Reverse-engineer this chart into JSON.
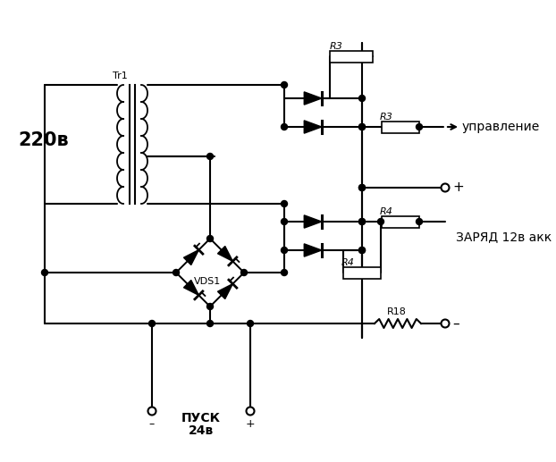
{
  "bg_color": "#ffffff",
  "line_color": "#000000",
  "figsize": [
    6.22,
    5.17
  ],
  "dpi": 100,
  "label_220": "220в",
  "label_tr1": "Tr1",
  "label_vds1": "VDS1",
  "label_r3a": "R3",
  "label_r3b": "R3",
  "label_r4a": "R4",
  "label_r4b": "R4",
  "label_r18": "R18",
  "label_upravlenie": "управление",
  "label_plus": "+",
  "label_minus": "–",
  "label_zariad": "ЗАРЯД 12в акк",
  "label_pusk": "ПУСК",
  "label_24v": "24в"
}
